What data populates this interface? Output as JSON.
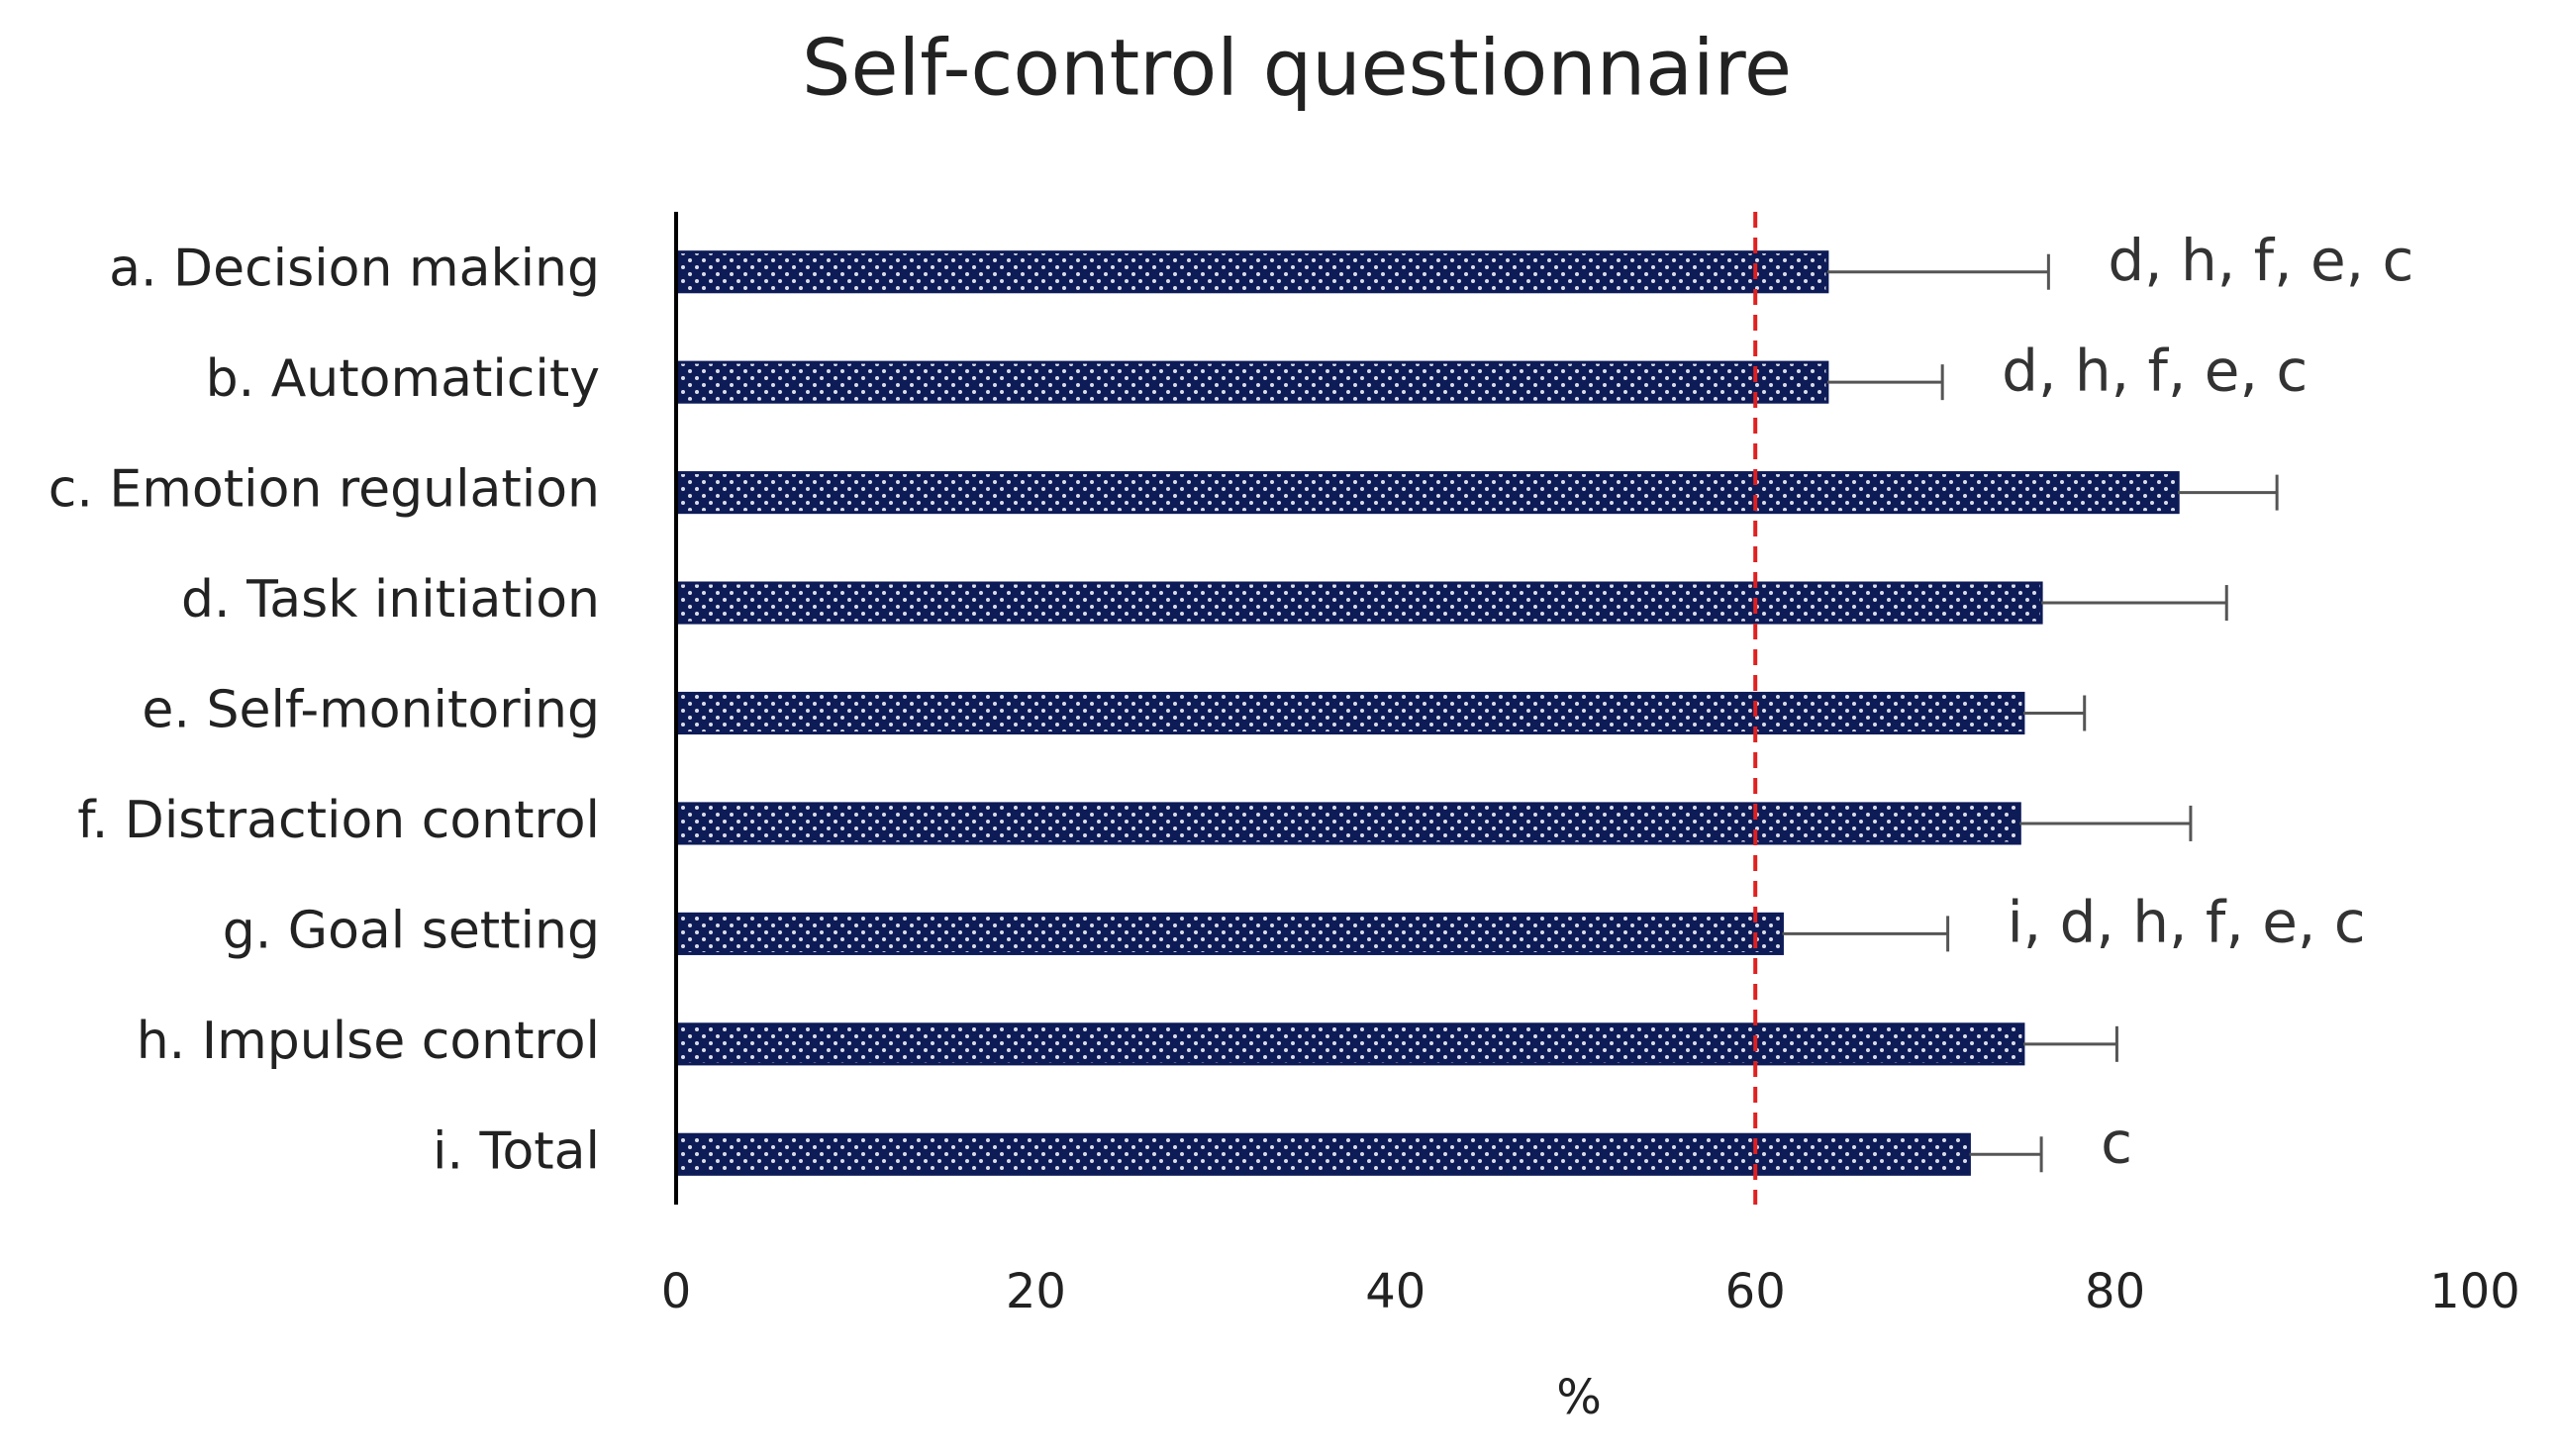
{
  "chart_data": {
    "type": "bar",
    "orientation": "horizontal",
    "title": "Self-control questionnaire",
    "x_label": "%",
    "categories": [
      "a. Decision making",
      "b. Automaticity",
      "c. Emotion regulation",
      "d. Task initiation",
      "e. Self-monitoring",
      "f. Distraction control",
      "g. Goal setting",
      "h. Impulse control",
      "i. Total"
    ],
    "values": [
      64,
      64,
      83.5,
      75.9,
      74.9,
      74.7,
      61.5,
      74.9,
      71.9
    ],
    "errors": [
      12.3,
      6.4,
      5.5,
      10.3,
      3.4,
      9.5,
      9.2,
      5.2,
      4.0
    ],
    "annotations": [
      "d, h, f, e, c",
      "d, h, f, e, c",
      null,
      null,
      null,
      null,
      "i, d, h, f, e, c",
      null,
      "c"
    ],
    "color": "#0d1b57",
    "error_color": "#555555",
    "reference_line": 60,
    "reference_color": "#e02020",
    "xlim": [
      0,
      100
    ],
    "xticks": [
      0,
      20,
      40,
      60,
      80,
      100
    ],
    "grid": false
  }
}
